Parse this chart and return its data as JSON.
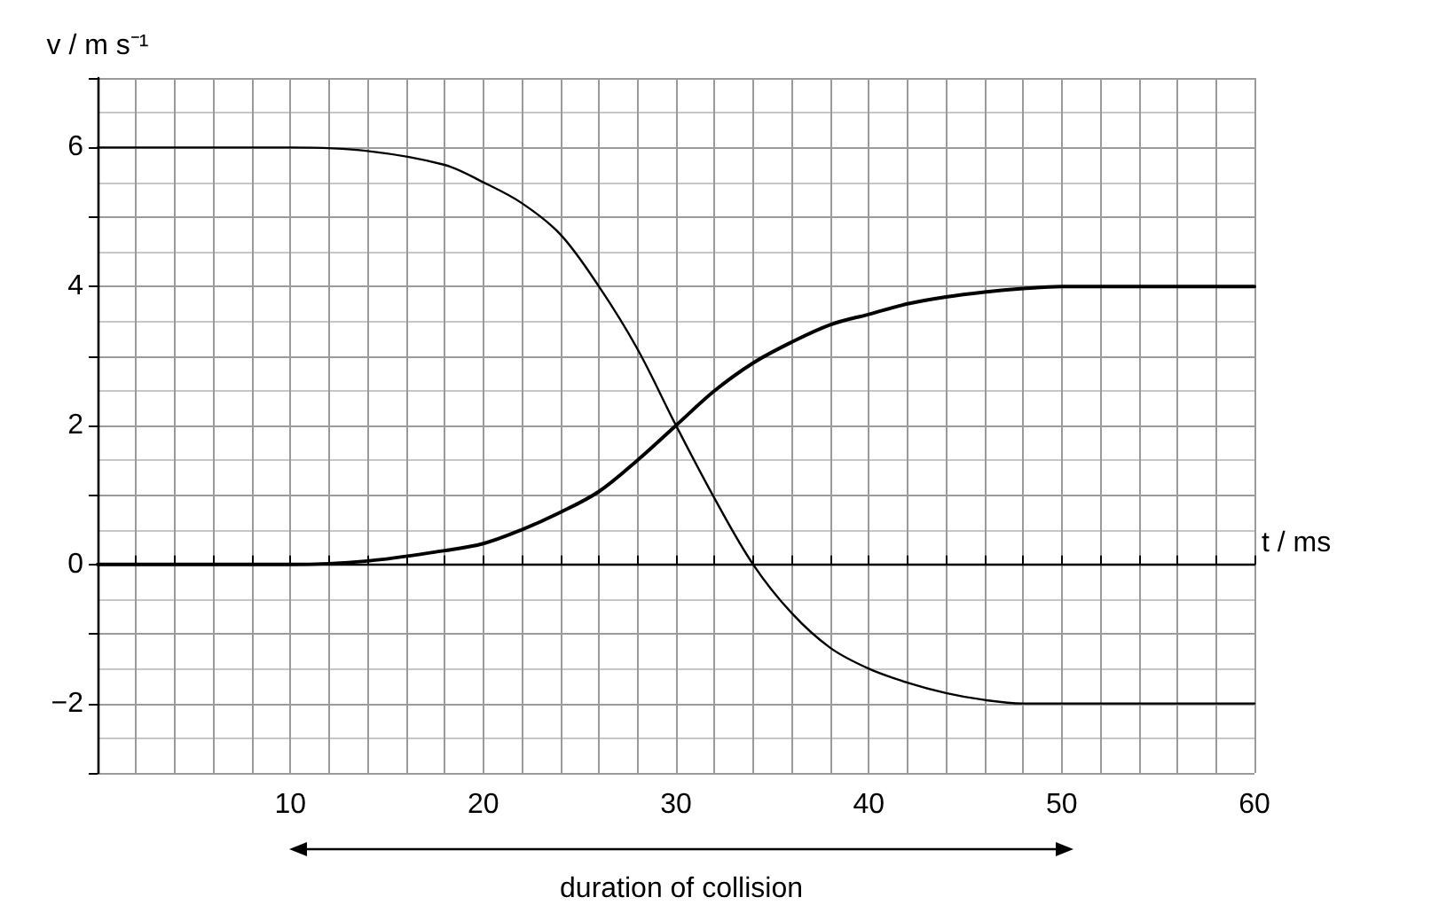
{
  "chart_data": {
    "type": "line",
    "xlabel": "t / ms",
    "ylabel": "v / m s⁻¹",
    "xlim": [
      0,
      60
    ],
    "ylim": [
      -3,
      7
    ],
    "xticks": [
      {
        "value": 0,
        "label": null
      },
      {
        "value": 2,
        "label": null
      },
      {
        "value": 4,
        "label": null
      },
      {
        "value": 6,
        "label": null
      },
      {
        "value": 8,
        "label": null
      },
      10,
      {
        "value": 12,
        "label": null
      },
      {
        "value": 14,
        "label": null
      },
      {
        "value": 16,
        "label": null
      },
      {
        "value": 18,
        "label": null
      },
      20,
      {
        "value": 22,
        "label": null
      },
      {
        "value": 24,
        "label": null
      },
      {
        "value": 26,
        "label": null
      },
      {
        "value": 28,
        "label": null
      },
      30,
      {
        "value": 32,
        "label": null
      },
      {
        "value": 34,
        "label": null
      },
      {
        "value": 36,
        "label": null
      },
      {
        "value": 38,
        "label": null
      },
      40,
      {
        "value": 42,
        "label": null
      },
      {
        "value": 44,
        "label": null
      },
      {
        "value": 46,
        "label": null
      },
      {
        "value": 48,
        "label": null
      },
      50,
      {
        "value": 52,
        "label": null
      },
      {
        "value": 54,
        "label": null
      },
      {
        "value": 56,
        "label": null
      },
      {
        "value": 58,
        "label": null
      },
      60
    ],
    "yticks": [
      {
        "value": -3,
        "label": null
      },
      {
        "value": -2,
        "label": "−2"
      },
      {
        "value": -1,
        "label": null
      },
      0,
      {
        "value": 1,
        "label": null
      },
      2,
      {
        "value": 3,
        "label": null
      },
      4,
      {
        "value": 5,
        "label": null
      },
      6,
      {
        "value": 7,
        "label": null
      }
    ],
    "x": [
      0,
      10,
      14,
      18,
      20,
      22,
      24,
      26,
      28,
      30,
      32,
      34,
      36,
      38,
      40,
      42,
      44,
      46,
      48,
      50,
      60
    ],
    "series": [
      {
        "color": "#000000",
        "values": [
          6,
          6,
          5.95,
          5.75,
          5.5,
          5.2,
          4.75,
          4.0,
          3.1,
          2,
          0.95,
          0,
          -0.7,
          -1.2,
          -1.5,
          -1.7,
          -1.85,
          -1.95,
          -2,
          -2,
          -2
        ]
      },
      {
        "color": "#000000",
        "values": [
          0,
          0,
          0.05,
          0.2,
          0.3,
          0.5,
          0.75,
          1.05,
          1.5,
          2,
          2.5,
          2.9,
          3.2,
          3.45,
          3.6,
          3.75,
          3.85,
          3.92,
          3.97,
          4,
          4
        ]
      }
    ],
    "annotations": [
      "duration of collision"
    ],
    "grid": true,
    "marker": "none",
    "line_style": "solid"
  }
}
